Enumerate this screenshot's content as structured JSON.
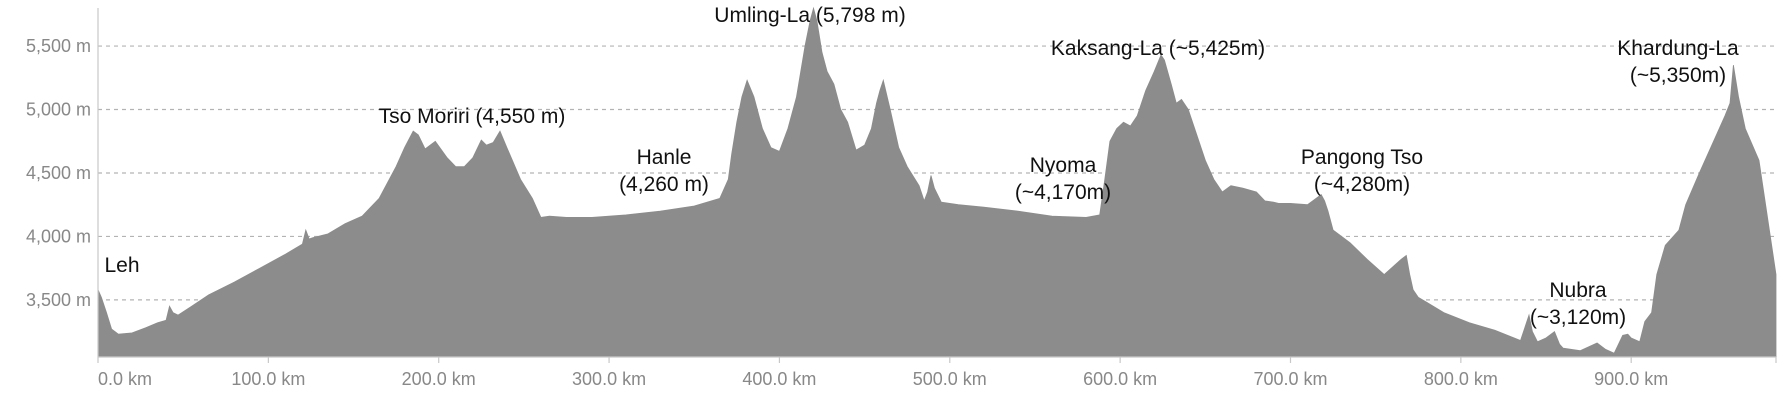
{
  "chart_data": {
    "type": "area",
    "title": "",
    "xlabel": "",
    "ylabel": "",
    "x_unit": "km",
    "y_unit": "m",
    "xlim": [
      0,
      985
    ],
    "ylim": [
      3050,
      5800
    ],
    "fill_color": "#8c8c8c",
    "grid": "horizontal dashed",
    "x_ticks": [
      {
        "value": 0,
        "label": "0.0 km"
      },
      {
        "value": 100,
        "label": "100.0 km"
      },
      {
        "value": 200,
        "label": "200.0 km"
      },
      {
        "value": 300,
        "label": "300.0 km"
      },
      {
        "value": 400,
        "label": "400.0 km"
      },
      {
        "value": 500,
        "label": "500.0 km"
      },
      {
        "value": 600,
        "label": "600.0 km"
      },
      {
        "value": 700,
        "label": "700.0 km"
      },
      {
        "value": 800,
        "label": "800.0 km"
      },
      {
        "value": 900,
        "label": "900.0 km"
      }
    ],
    "y_ticks": [
      {
        "value": 3500,
        "label": "3,500 m"
      },
      {
        "value": 4000,
        "label": "4,000 m"
      },
      {
        "value": 4500,
        "label": "4,500 m"
      },
      {
        "value": 5000,
        "label": "5,000 m"
      },
      {
        "value": 5500,
        "label": "5,500 m"
      }
    ],
    "profile": {
      "x": [
        0,
        2,
        5,
        8,
        12,
        20,
        28,
        35,
        40,
        42,
        44,
        47,
        55,
        65,
        80,
        95,
        110,
        120,
        122,
        124,
        126,
        135,
        145,
        155,
        165,
        175,
        180,
        185,
        188,
        192,
        198,
        205,
        210,
        215,
        220,
        225,
        228,
        232,
        236,
        240,
        248,
        255,
        260,
        265,
        275,
        290,
        310,
        330,
        350,
        365,
        370,
        372,
        375,
        378,
        381,
        385,
        390,
        395,
        400,
        405,
        410,
        415,
        418,
        420,
        422,
        425,
        428,
        432,
        436,
        440,
        445,
        450,
        454,
        457,
        459,
        461,
        465,
        470,
        475,
        482,
        485,
        487,
        489,
        491,
        495,
        505,
        520,
        540,
        560,
        580,
        588,
        591,
        594,
        598,
        602,
        606,
        610,
        615,
        620,
        624,
        626,
        630,
        633,
        636,
        640,
        645,
        650,
        655,
        660,
        665,
        672,
        680,
        685,
        690,
        693,
        700,
        710,
        715,
        718,
        720,
        722,
        725,
        735,
        745,
        755,
        765,
        768,
        770,
        772,
        775,
        780,
        790,
        805,
        820,
        835,
        838,
        840,
        842,
        845,
        850,
        855,
        858,
        860,
        870,
        880,
        885,
        890,
        895,
        898,
        900,
        905,
        908,
        912,
        915,
        920,
        928,
        932,
        940,
        950,
        955,
        958,
        960,
        963,
        967,
        975,
        985
      ],
      "y": [
        3580,
        3520,
        3400,
        3270,
        3230,
        3240,
        3280,
        3320,
        3340,
        3450,
        3400,
        3380,
        3450,
        3540,
        3640,
        3750,
        3860,
        3940,
        4050,
        3980,
        3990,
        4020,
        4100,
        4160,
        4300,
        4550,
        4700,
        4830,
        4800,
        4690,
        4750,
        4620,
        4550,
        4550,
        4620,
        4760,
        4720,
        4740,
        4830,
        4700,
        4450,
        4300,
        4150,
        4160,
        4150,
        4150,
        4170,
        4200,
        4240,
        4300,
        4450,
        4650,
        4900,
        5100,
        5230,
        5100,
        4850,
        4700,
        4670,
        4850,
        5100,
        5500,
        5700,
        5798,
        5700,
        5450,
        5300,
        5200,
        5000,
        4900,
        4680,
        4720,
        4850,
        5050,
        5150,
        5230,
        5000,
        4700,
        4550,
        4400,
        4280,
        4350,
        4480,
        4380,
        4270,
        4250,
        4230,
        4200,
        4160,
        4150,
        4170,
        4450,
        4750,
        4850,
        4900,
        4870,
        4950,
        5150,
        5300,
        5430,
        5390,
        5200,
        5050,
        5080,
        5000,
        4800,
        4600,
        4450,
        4350,
        4400,
        4380,
        4350,
        4280,
        4270,
        4260,
        4260,
        4250,
        4300,
        4330,
        4280,
        4200,
        4050,
        3950,
        3820,
        3700,
        3820,
        3850,
        3700,
        3580,
        3520,
        3480,
        3400,
        3320,
        3260,
        3180,
        3300,
        3380,
        3250,
        3170,
        3200,
        3250,
        3150,
        3120,
        3100,
        3160,
        3110,
        3080,
        3220,
        3230,
        3200,
        3170,
        3330,
        3400,
        3700,
        3930,
        4050,
        4250,
        4500,
        4800,
        4950,
        5050,
        5350,
        5100,
        4850,
        4600,
        3700
      ]
    },
    "annotations": [
      {
        "lines": [
          "Leh"
        ]
      },
      {
        "lines": [
          "Tso Moriri (4,550 m)"
        ]
      },
      {
        "lines": [
          "Hanle",
          "(4,260 m)"
        ]
      },
      {
        "lines": [
          "Umling-La  (5,798 m)"
        ]
      },
      {
        "lines": [
          "Nyoma",
          "(~4,170m)"
        ]
      },
      {
        "lines": [
          "Kaksang-La  (~5,425m)"
        ]
      },
      {
        "lines": [
          "Pangong Tso",
          "(~4,280m)"
        ]
      },
      {
        "lines": [
          "Nubra",
          "(~3,120m)"
        ]
      },
      {
        "lines": [
          "Khardung-La",
          "(~5,350m)"
        ]
      }
    ]
  }
}
